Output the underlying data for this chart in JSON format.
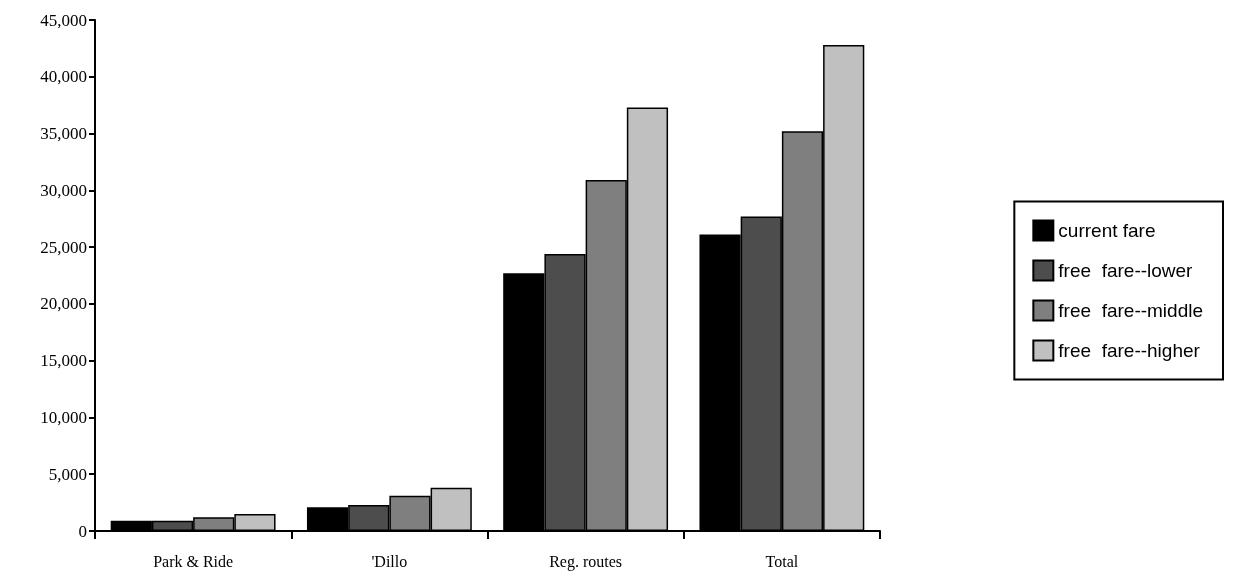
{
  "chart_data": {
    "type": "bar",
    "categories": [
      "Park & Ride",
      "'Dillo",
      "Reg. routes",
      "Total"
    ],
    "series": [
      {
        "name": "current fare",
        "color": "#000000",
        "values": [
          900,
          2100,
          22700,
          26100
        ]
      },
      {
        "name": "free  fare--lower",
        "color": "#4d4d4d",
        "values": [
          900,
          2300,
          24400,
          27700
        ]
      },
      {
        "name": "free  fare--middle",
        "color": "#7f7f7f",
        "values": [
          1200,
          3100,
          30900,
          35200
        ]
      },
      {
        "name": "free  fare--higher",
        "color": "#c0c0c0",
        "values": [
          1500,
          3800,
          37300,
          42800
        ]
      }
    ],
    "ylim": [
      0,
      45000
    ],
    "yticks": [
      0,
      {
        "value": 5000,
        "label": "5,000"
      },
      {
        "value": 10000,
        "label": "10,000"
      },
      {
        "value": 15000,
        "label": "15,000"
      },
      {
        "value": 20000,
        "label": "20,000"
      },
      {
        "value": 25000,
        "label": "25,000"
      },
      {
        "value": 30000,
        "label": "30,000"
      },
      {
        "value": 35000,
        "label": "35,000"
      },
      {
        "value": 40000,
        "label": "40,000"
      },
      {
        "value": 45000,
        "label": "45,000"
      }
    ],
    "grid": false,
    "legend": "right"
  }
}
